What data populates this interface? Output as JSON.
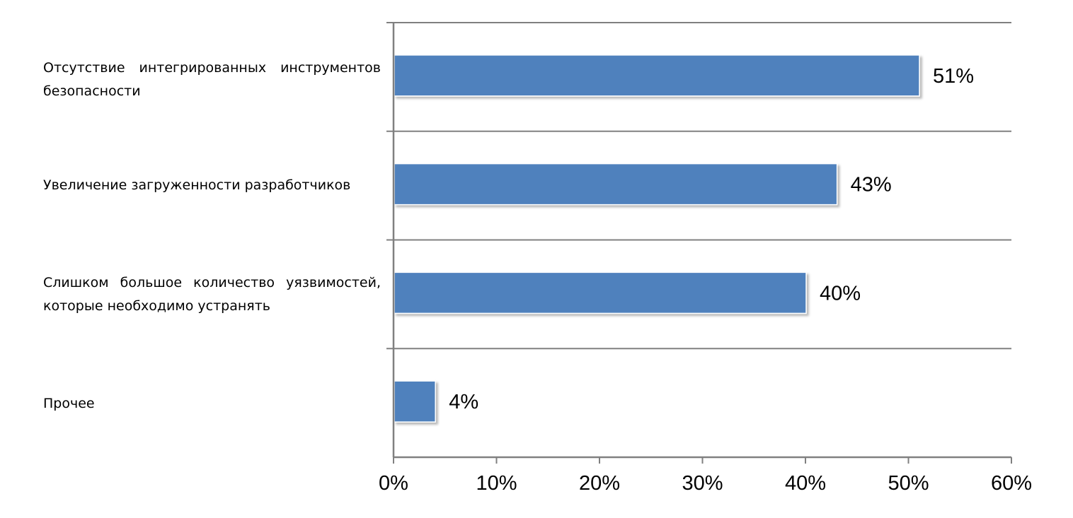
{
  "chart_data": {
    "type": "bar",
    "orientation": "horizontal",
    "categories": [
      "Отсутствие интегрированных инструментов безопасности",
      "Увеличение загруженности разработчиков",
      "Слишком большое количество уязвимостей, которые необходимо устранять",
      "Прочее"
    ],
    "values": [
      51,
      43,
      40,
      4
    ],
    "value_labels": [
      "51%",
      "43%",
      "40%",
      "4%"
    ],
    "xlim": [
      0,
      60
    ],
    "x_ticks": [
      0,
      10,
      20,
      30,
      40,
      50,
      60
    ],
    "x_tick_labels": [
      "0%",
      "10%",
      "20%",
      "30%",
      "40%",
      "50%",
      "60%"
    ],
    "title": "",
    "xlabel": "",
    "ylabel": "",
    "grid": "horizontal category separators",
    "legend": "none",
    "bar_color": "#4f81bd",
    "axis_color": "#808080"
  }
}
